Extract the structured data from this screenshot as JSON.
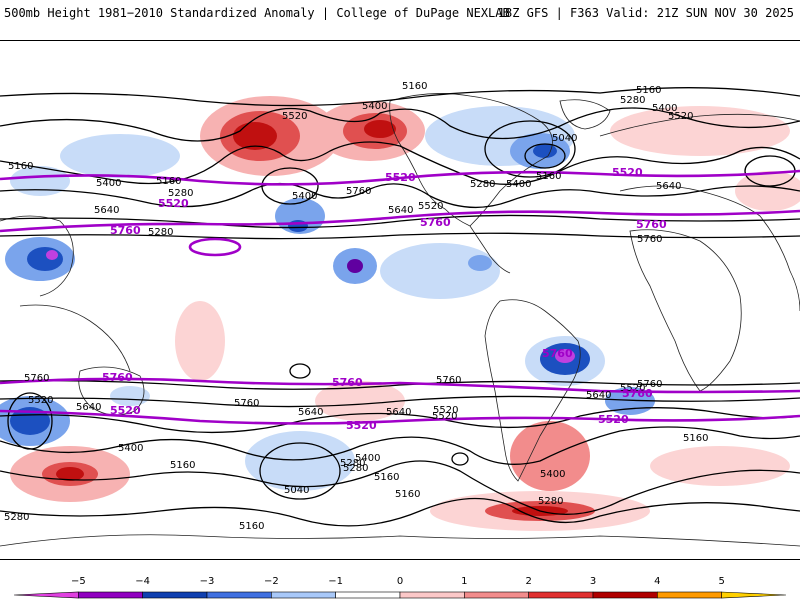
{
  "header": {
    "left": "500mb Height 1981−2010 Standardized Anomaly | College of DuPage NEXLAB",
    "right": "18Z GFS | F363 Valid: 21Z SUN NOV 30 2025"
  },
  "contour_labels": {
    "black": [
      "5160",
      "5400",
      "5520",
      "5160",
      "5280",
      "5400",
      "5520",
      "5040",
      "5400",
      "5160",
      "5280",
      "5160",
      "5280",
      "5400",
      "5640",
      "5760",
      "5280",
      "5400",
      "5160",
      "5640",
      "5520",
      "5760",
      "5640",
      "5760",
      "5520",
      "5760",
      "5640",
      "5760",
      "5520",
      "5640",
      "5400",
      "5640",
      "5520",
      "5400",
      "5280",
      "5160",
      "5040",
      "5160",
      "5400",
      "5280",
      "5160",
      "5280",
      "5160",
      "5640",
      "5760",
      "5520",
      "5280",
      "5160"
    ],
    "purple": [
      "5520",
      "5520",
      "5520",
      "5760",
      "5760",
      "5760",
      "5760",
      "5760",
      "5520",
      "5520",
      "5520",
      "5760",
      "5760"
    ]
  },
  "colorbar": {
    "ticks": [
      "−5",
      "−4",
      "−3",
      "−2",
      "−1",
      "0",
      "1",
      "2",
      "3",
      "4",
      "5"
    ],
    "colors": [
      "#e040e0",
      "#9000c0",
      "#1040b0",
      "#4070e0",
      "#a8c8f8",
      "#ffffff",
      "#fcc8c8",
      "#f28c8c",
      "#e03030",
      "#b00000",
      "#ff9a00",
      "#ffd000"
    ]
  }
}
